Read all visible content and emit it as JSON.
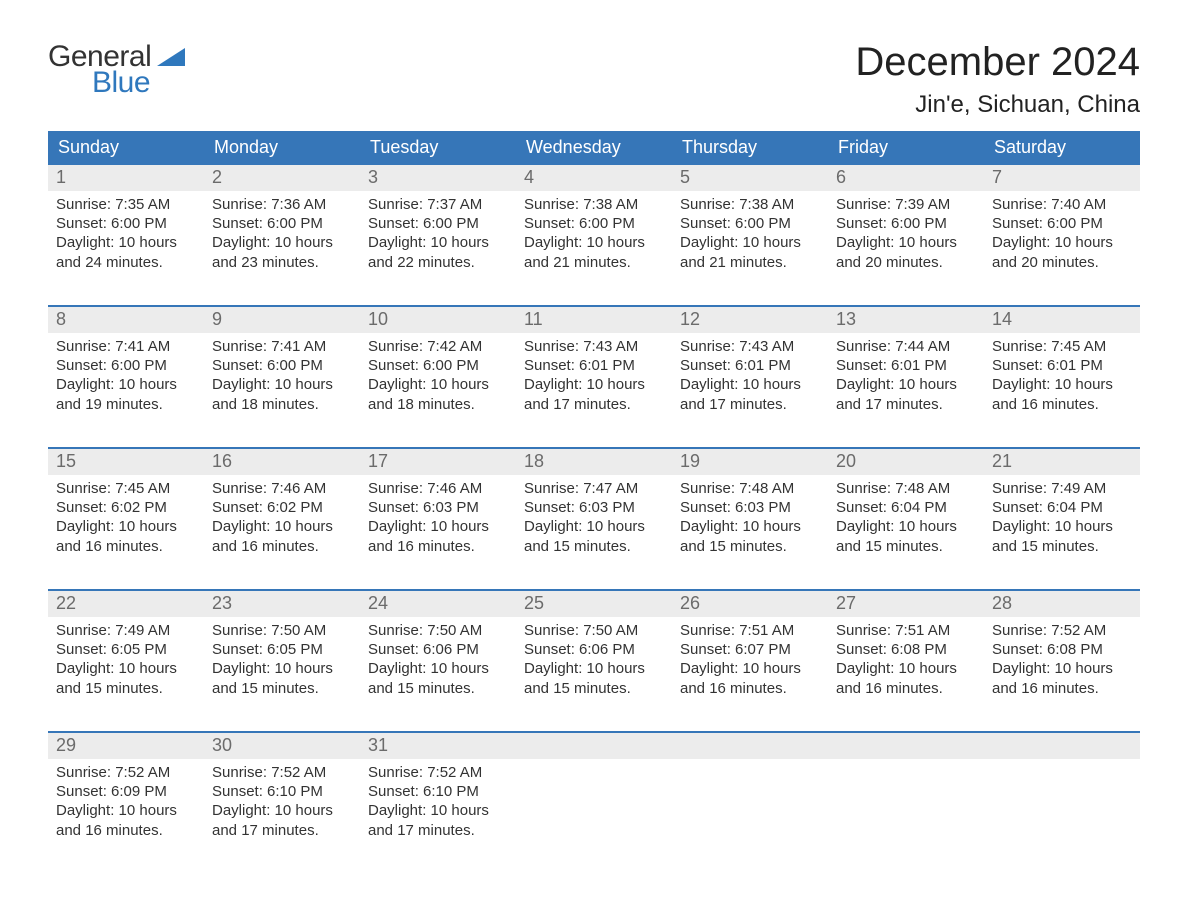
{
  "brand": {
    "line1": "General",
    "line2": "Blue",
    "accent": "#2f78bd"
  },
  "title": {
    "month": "December 2024",
    "location": "Jin'e, Sichuan, China"
  },
  "colors": {
    "header_bg": "#3676b8",
    "header_text": "#ffffff",
    "daynum_bg": "#ececec",
    "daynum_text": "#6b6b6b",
    "rule": "#3676b8",
    "body_text": "#333333",
    "page_bg": "#ffffff"
  },
  "typography": {
    "month_fontsize": 40,
    "location_fontsize": 24,
    "header_fontsize": 18,
    "daynum_fontsize": 18,
    "cell_fontsize": 15
  },
  "headers": [
    "Sunday",
    "Monday",
    "Tuesday",
    "Wednesday",
    "Thursday",
    "Friday",
    "Saturday"
  ],
  "weeks": [
    {
      "nums": [
        "1",
        "2",
        "3",
        "4",
        "5",
        "6",
        "7"
      ],
      "cells": [
        "Sunrise: 7:35 AM\nSunset: 6:00 PM\nDaylight: 10 hours\nand 24 minutes.",
        "Sunrise: 7:36 AM\nSunset: 6:00 PM\nDaylight: 10 hours\nand 23 minutes.",
        "Sunrise: 7:37 AM\nSunset: 6:00 PM\nDaylight: 10 hours\nand 22 minutes.",
        "Sunrise: 7:38 AM\nSunset: 6:00 PM\nDaylight: 10 hours\nand 21 minutes.",
        "Sunrise: 7:38 AM\nSunset: 6:00 PM\nDaylight: 10 hours\nand 21 minutes.",
        "Sunrise: 7:39 AM\nSunset: 6:00 PM\nDaylight: 10 hours\nand 20 minutes.",
        "Sunrise: 7:40 AM\nSunset: 6:00 PM\nDaylight: 10 hours\nand 20 minutes."
      ]
    },
    {
      "nums": [
        "8",
        "9",
        "10",
        "11",
        "12",
        "13",
        "14"
      ],
      "cells": [
        "Sunrise: 7:41 AM\nSunset: 6:00 PM\nDaylight: 10 hours\nand 19 minutes.",
        "Sunrise: 7:41 AM\nSunset: 6:00 PM\nDaylight: 10 hours\nand 18 minutes.",
        "Sunrise: 7:42 AM\nSunset: 6:00 PM\nDaylight: 10 hours\nand 18 minutes.",
        "Sunrise: 7:43 AM\nSunset: 6:01 PM\nDaylight: 10 hours\nand 17 minutes.",
        "Sunrise: 7:43 AM\nSunset: 6:01 PM\nDaylight: 10 hours\nand 17 minutes.",
        "Sunrise: 7:44 AM\nSunset: 6:01 PM\nDaylight: 10 hours\nand 17 minutes.",
        "Sunrise: 7:45 AM\nSunset: 6:01 PM\nDaylight: 10 hours\nand 16 minutes."
      ]
    },
    {
      "nums": [
        "15",
        "16",
        "17",
        "18",
        "19",
        "20",
        "21"
      ],
      "cells": [
        "Sunrise: 7:45 AM\nSunset: 6:02 PM\nDaylight: 10 hours\nand 16 minutes.",
        "Sunrise: 7:46 AM\nSunset: 6:02 PM\nDaylight: 10 hours\nand 16 minutes.",
        "Sunrise: 7:46 AM\nSunset: 6:03 PM\nDaylight: 10 hours\nand 16 minutes.",
        "Sunrise: 7:47 AM\nSunset: 6:03 PM\nDaylight: 10 hours\nand 15 minutes.",
        "Sunrise: 7:48 AM\nSunset: 6:03 PM\nDaylight: 10 hours\nand 15 minutes.",
        "Sunrise: 7:48 AM\nSunset: 6:04 PM\nDaylight: 10 hours\nand 15 minutes.",
        "Sunrise: 7:49 AM\nSunset: 6:04 PM\nDaylight: 10 hours\nand 15 minutes."
      ]
    },
    {
      "nums": [
        "22",
        "23",
        "24",
        "25",
        "26",
        "27",
        "28"
      ],
      "cells": [
        "Sunrise: 7:49 AM\nSunset: 6:05 PM\nDaylight: 10 hours\nand 15 minutes.",
        "Sunrise: 7:50 AM\nSunset: 6:05 PM\nDaylight: 10 hours\nand 15 minutes.",
        "Sunrise: 7:50 AM\nSunset: 6:06 PM\nDaylight: 10 hours\nand 15 minutes.",
        "Sunrise: 7:50 AM\nSunset: 6:06 PM\nDaylight: 10 hours\nand 15 minutes.",
        "Sunrise: 7:51 AM\nSunset: 6:07 PM\nDaylight: 10 hours\nand 16 minutes.",
        "Sunrise: 7:51 AM\nSunset: 6:08 PM\nDaylight: 10 hours\nand 16 minutes.",
        "Sunrise: 7:52 AM\nSunset: 6:08 PM\nDaylight: 10 hours\nand 16 minutes."
      ]
    },
    {
      "nums": [
        "29",
        "30",
        "31",
        "",
        "",
        "",
        ""
      ],
      "cells": [
        "Sunrise: 7:52 AM\nSunset: 6:09 PM\nDaylight: 10 hours\nand 16 minutes.",
        "Sunrise: 7:52 AM\nSunset: 6:10 PM\nDaylight: 10 hours\nand 17 minutes.",
        "Sunrise: 7:52 AM\nSunset: 6:10 PM\nDaylight: 10 hours\nand 17 minutes.",
        "",
        "",
        "",
        ""
      ]
    }
  ]
}
